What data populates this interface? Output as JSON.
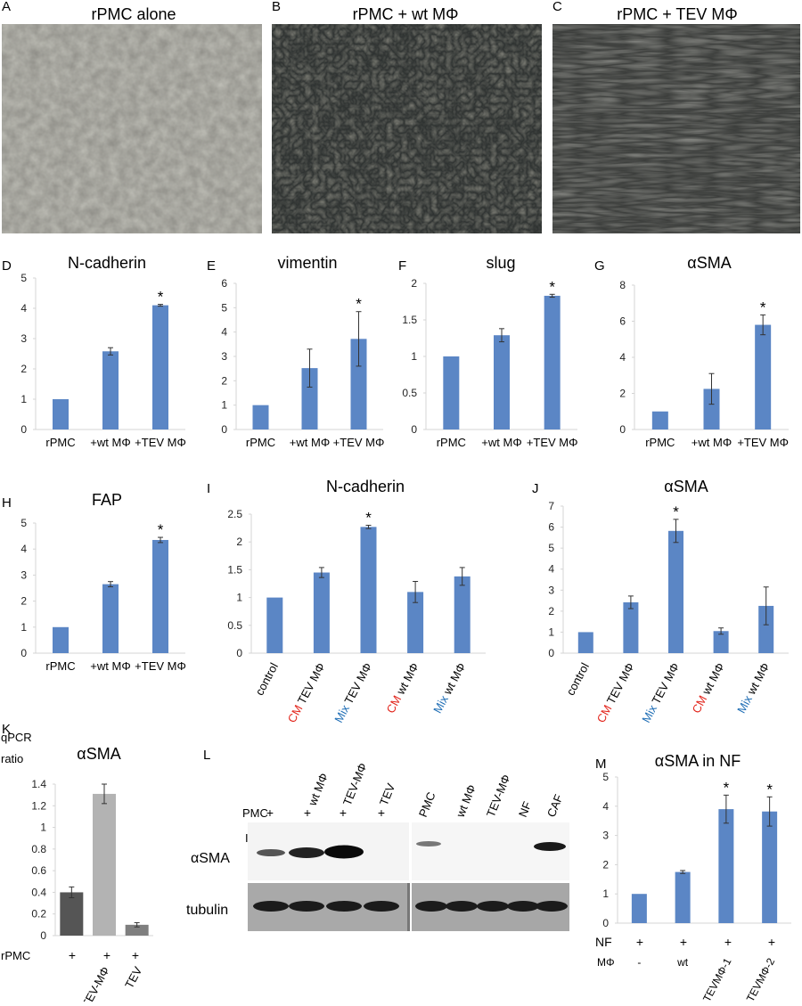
{
  "figure": {
    "micro": [
      {
        "letter": "A",
        "title": "rPMC alone"
      },
      {
        "letter": "B",
        "title": "rPMC + wt MΦ"
      },
      {
        "letter": "C",
        "title": "rPMC + TEV MΦ"
      }
    ],
    "star": "*",
    "K": {
      "ylabel_line1": "qPCR",
      "ylabel_line2": "ratio",
      "row_label": "rPMC",
      "plus": "+"
    },
    "L": {
      "letter": "L",
      "ib": "IB",
      "pmc_label": "PMC",
      "plus": "+",
      "lanes_left": [
        "wt MΦ",
        "TEV-MΦ",
        "TEV"
      ],
      "lanes_right": [
        "PMC",
        "wt MΦ",
        "TEV-MΦ",
        "NF",
        "CAF"
      ],
      "row1": "αSMA",
      "row2": "tubulin"
    },
    "M": {
      "row1_label": "NF",
      "row2_label": "MΦ",
      "plus": "+",
      "mphi": [
        "-",
        "wt",
        "TEVMΦ-1",
        "TEVMΦ-2"
      ]
    }
  },
  "chart_data": [
    {
      "panel": "D",
      "type": "bar",
      "title": "N-cadherin",
      "categories": [
        "rPMC",
        "+wt MΦ",
        "+TEV MΦ"
      ],
      "values": [
        1.0,
        2.58,
        4.1
      ],
      "errors": [
        0,
        0.12,
        0.03
      ],
      "ylim": [
        0,
        5
      ],
      "yticks": [
        0,
        1,
        2,
        3,
        4,
        5
      ],
      "significant": [
        false,
        false,
        true
      ]
    },
    {
      "panel": "E",
      "type": "bar",
      "title": "vimentin",
      "categories": [
        "rPMC",
        "+wt MΦ",
        "+TEV MΦ"
      ],
      "values": [
        1.0,
        2.52,
        3.72
      ],
      "errors": [
        0,
        0.78,
        1.12
      ],
      "ylim": [
        0,
        6
      ],
      "yticks": [
        0,
        1,
        2,
        3,
        4,
        5,
        6
      ],
      "significant": [
        false,
        false,
        true
      ]
    },
    {
      "panel": "F",
      "type": "bar",
      "title": "slug",
      "categories": [
        "rPMC",
        "+wt MΦ",
        "+TEV MΦ"
      ],
      "values": [
        1.0,
        1.29,
        1.83
      ],
      "errors": [
        0,
        0.09,
        0.02
      ],
      "ylim": [
        0,
        2
      ],
      "yticks": [
        0,
        0.5,
        1,
        1.5,
        2
      ],
      "significant": [
        false,
        false,
        true
      ]
    },
    {
      "panel": "G",
      "type": "bar",
      "title": "αSMA",
      "categories": [
        "rPMC",
        "+wt MΦ",
        "+TEV MΦ"
      ],
      "values": [
        1.0,
        2.25,
        5.8
      ],
      "errors": [
        0,
        0.85,
        0.55
      ],
      "ylim": [
        0,
        8
      ],
      "yticks": [
        0,
        2,
        4,
        6,
        8
      ],
      "significant": [
        false,
        false,
        true
      ]
    },
    {
      "panel": "H",
      "type": "bar",
      "title": "FAP",
      "categories": [
        "rPMC",
        "+wt MΦ",
        "+TEV MΦ"
      ],
      "values": [
        1.0,
        2.65,
        4.35
      ],
      "errors": [
        0,
        0.1,
        0.1
      ],
      "ylim": [
        0,
        5
      ],
      "yticks": [
        0,
        1,
        2,
        3,
        4,
        5
      ],
      "significant": [
        false,
        false,
        true
      ]
    },
    {
      "panel": "I",
      "type": "bar",
      "title": "N-cadherin",
      "categories": [
        [
          "control",
          ""
        ],
        [
          "CM",
          " TEV MΦ"
        ],
        [
          "Mix",
          " TEV MΦ"
        ],
        [
          "CM",
          " wt MΦ"
        ],
        [
          "Mix",
          " wt MΦ"
        ]
      ],
      "values": [
        1.0,
        1.45,
        2.27,
        1.1,
        1.38
      ],
      "errors": [
        0,
        0.09,
        0.03,
        0.19,
        0.16
      ],
      "ylim": [
        0,
        2.5
      ],
      "yticks": [
        0,
        0.5,
        1,
        1.5,
        2,
        2.5
      ],
      "significant": [
        false,
        false,
        true,
        false,
        false
      ]
    },
    {
      "panel": "J",
      "type": "bar",
      "title": "αSMA",
      "categories": [
        [
          "control",
          ""
        ],
        [
          "CM",
          " TEV MΦ"
        ],
        [
          "Mix",
          " TEV MΦ"
        ],
        [
          "CM",
          " wt MΦ"
        ],
        [
          "Mix",
          " wt MΦ"
        ]
      ],
      "values": [
        1.0,
        2.42,
        5.82,
        1.05,
        2.25
      ],
      "errors": [
        0,
        0.3,
        0.55,
        0.15,
        0.9
      ],
      "ylim": [
        0,
        7
      ],
      "yticks": [
        0,
        1,
        2,
        3,
        4,
        5,
        6,
        7
      ],
      "significant": [
        false,
        false,
        true,
        false,
        false
      ]
    },
    {
      "panel": "K",
      "type": "bar",
      "title": "αSMA",
      "categories": [
        "+",
        "TEV-MΦ",
        "TEV"
      ],
      "values": [
        0.4,
        1.31,
        0.1
      ],
      "errors": [
        0.05,
        0.09,
        0.02
      ],
      "ylim": [
        0,
        1.4
      ],
      "yticks": [
        0,
        0.2,
        0.4,
        0.6,
        0.8,
        1,
        1.2,
        1.4
      ],
      "significant": [
        false,
        false,
        false
      ]
    },
    {
      "panel": "M",
      "type": "bar",
      "title": "αSMA in NF",
      "categories": [
        "-",
        "wt",
        "TEVMΦ-1",
        "TEVMΦ-2"
      ],
      "values": [
        1.0,
        1.75,
        3.9,
        3.82
      ],
      "errors": [
        0,
        0.05,
        0.48,
        0.5
      ],
      "ylim": [
        0,
        5
      ],
      "yticks": [
        0,
        1,
        2,
        3,
        4,
        5
      ],
      "significant": [
        false,
        false,
        true,
        true
      ]
    }
  ]
}
